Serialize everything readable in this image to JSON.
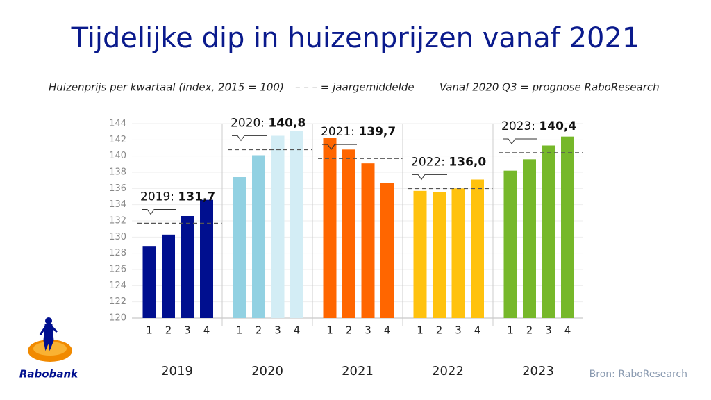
{
  "chart_data": {
    "type": "grouped-bar",
    "title": "Tijdelijke dip in huizenprijzen vanaf 2021",
    "subtitle": "Huizenprijs per kwartaal (index, 2015 = 100)",
    "legend_average": "– – – = jaargemiddelde",
    "legend_forecast": "Vanaf 2020 Q3 = prognose RaboResearch",
    "source": "Bron: RaboResearch",
    "brand": "Rabobank",
    "categories": [
      "1",
      "2",
      "3",
      "4"
    ],
    "ylim": [
      120,
      144
    ],
    "yticks": [
      120,
      122,
      124,
      126,
      128,
      130,
      132,
      134,
      136,
      138,
      140,
      142,
      144
    ],
    "grid": true,
    "groups": [
      {
        "name": "2019",
        "average_title": "2019:",
        "average": 131.7,
        "average_label": "131,7",
        "values": [
          128.9,
          130.3,
          132.6,
          134.6
        ],
        "colors": [
          "#000f8f",
          "#000f8f",
          "#000f8f",
          "#000f8f"
        ]
      },
      {
        "name": "2020",
        "average_title": "2020:",
        "average": 140.8,
        "average_label": "140,8",
        "values": [
          137.4,
          140.1,
          142.5,
          143.1
        ],
        "colors": [
          "#92d1e2",
          "#92d1e2",
          "#d3edf5",
          "#d3edf5"
        ]
      },
      {
        "name": "2021",
        "average_title": "2021:",
        "average": 139.7,
        "average_label": "139,7",
        "values": [
          142.2,
          140.8,
          139.1,
          136.7
        ],
        "colors": [
          "#ff6600",
          "#ff6600",
          "#ff6600",
          "#ff6600"
        ]
      },
      {
        "name": "2022",
        "average_title": "2022:",
        "average": 136.0,
        "average_label": "136,0",
        "values": [
          135.7,
          135.6,
          136.0,
          137.1
        ],
        "colors": [
          "#ffc20e",
          "#ffc20e",
          "#ffc20e",
          "#ffc20e"
        ]
      },
      {
        "name": "2023",
        "average_title": "2023:",
        "average": 140.4,
        "average_label": "140,4",
        "values": [
          138.2,
          139.6,
          141.3,
          142.4
        ],
        "colors": [
          "#76b82a",
          "#76b82a",
          "#76b82a",
          "#76b82a"
        ]
      }
    ]
  }
}
